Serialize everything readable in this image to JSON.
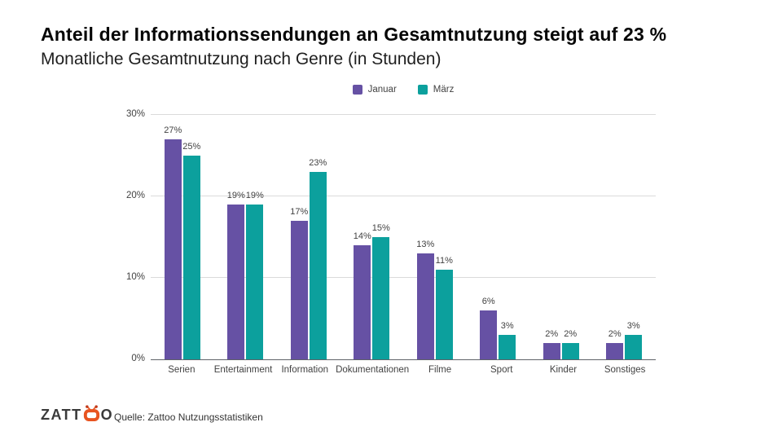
{
  "header": {
    "title": "Anteil der Informationssendungen an Gesamtnutzung steigt auf 23 %",
    "subtitle": "Monatliche Gesamtnutzung nach Genre (in Stunden)"
  },
  "chart_data": {
    "type": "bar",
    "categories": [
      "Serien",
      "Entertainment",
      "Information",
      "Dokumentationen",
      "Filme",
      "Sport",
      "Kinder",
      "Sonstiges"
    ],
    "series": [
      {
        "name": "Januar",
        "color": "#6651a4",
        "values": [
          27,
          19,
          17,
          14,
          13,
          6,
          2,
          2
        ]
      },
      {
        "name": "März",
        "color": "#0ca09d",
        "values": [
          25,
          19,
          23,
          15,
          11,
          3,
          2,
          3
        ]
      }
    ],
    "value_suffix": "%",
    "yticks": [
      0,
      10,
      20,
      30
    ],
    "ytick_suffix": "%",
    "ylim": [
      0,
      30
    ],
    "grid": true,
    "legend_position": "top",
    "grid_color": "#dadada",
    "axis_color": "#5f6368",
    "label_color": "#424242"
  },
  "footer": {
    "logo": {
      "brand": "Zattoo",
      "text_before_icon": "ZATT",
      "text_after_icon": "O",
      "icon": "tv-icon",
      "icon_color": "#e85420",
      "text_color": "#3a3a3a"
    },
    "source": "Quelle: Zattoo Nutzungsstatistiken"
  }
}
